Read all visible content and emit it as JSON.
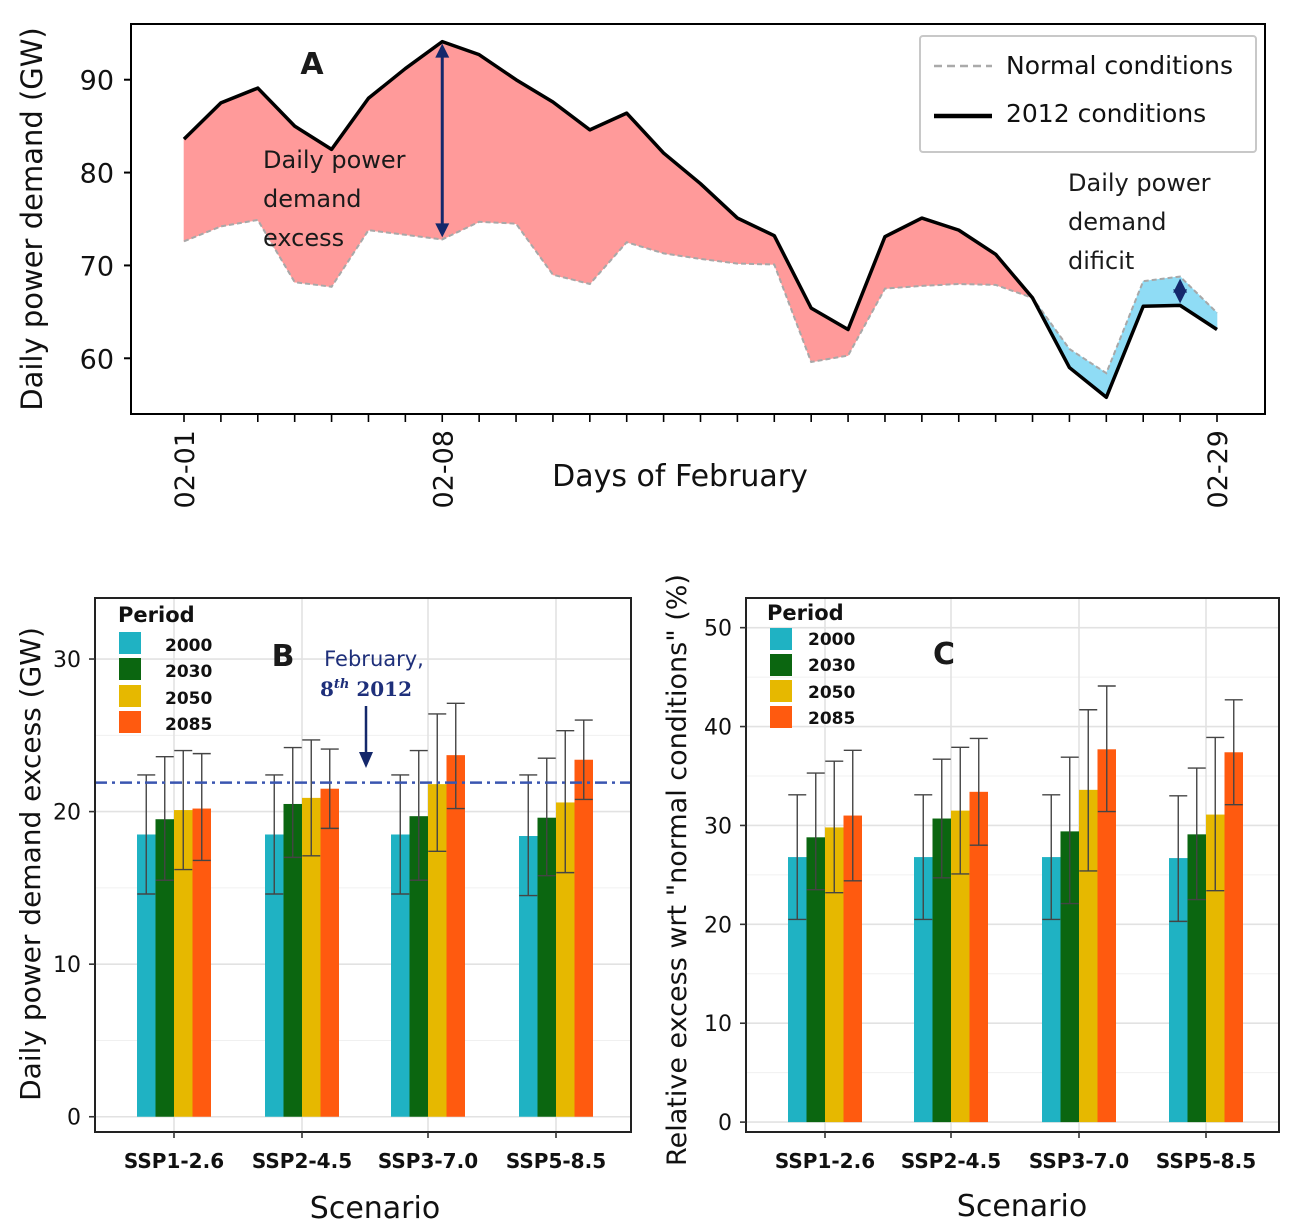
{
  "colors": {
    "excess_fill": "#ff9a9a",
    "deficit_fill": "#8fdcf5",
    "arrow": "#14286b",
    "ref_line": "#3a56b0",
    "period_2000": "#1fb2c3",
    "period_2030": "#0b6610",
    "period_2050": "#e6b800",
    "period_2085": "#ff5a0f"
  },
  "panel_a": {
    "label": "A",
    "legend": {
      "normal": "Normal conditions",
      "y2012": "2012 conditions"
    },
    "annotation_excess": [
      "Daily power",
      "demand",
      "excess"
    ],
    "annotation_deficit": [
      "Daily power",
      "demand",
      "dificit"
    ]
  },
  "panel_b": {
    "label": "B",
    "legend_title": "Period",
    "ref_annotation": "February,",
    "ref_annotation_2_base": "8",
    "ref_annotation_2_sup": "th",
    "ref_annotation_2_year": " 2012"
  },
  "panel_c": {
    "label": "C",
    "legend_title": "Period"
  },
  "chart_data": [
    {
      "type": "area",
      "xlabel": "Days of February",
      "ylabel": "Daily power demand (GW)",
      "x": [
        "02-01",
        "02-02",
        "02-03",
        "02-04",
        "02-05",
        "02-06",
        "02-07",
        "02-08",
        "02-09",
        "02-10",
        "02-11",
        "02-12",
        "02-13",
        "02-14",
        "02-15",
        "02-16",
        "02-17",
        "02-18",
        "02-19",
        "02-20",
        "02-21",
        "02-22",
        "02-23",
        "02-24",
        "02-25",
        "02-26",
        "02-27",
        "02-28",
        "02-29"
      ],
      "xticks": [
        "02-01",
        "02-08",
        "02-29"
      ],
      "ylim": [
        54,
        96
      ],
      "yticks": [
        60,
        70,
        80,
        90
      ],
      "series": [
        {
          "name": "2012 conditions",
          "values": [
            83.6,
            87.5,
            89.1,
            85.0,
            82.5,
            88.0,
            91.2,
            94.1,
            92.7,
            90.0,
            87.6,
            84.6,
            86.4,
            82.1,
            78.8,
            75.1,
            73.2,
            65.4,
            63.1,
            73.1,
            75.1,
            73.8,
            71.2,
            66.5,
            59.0,
            55.8,
            65.6,
            65.7,
            63.1
          ]
        },
        {
          "name": "Normal conditions",
          "values": [
            72.6,
            74.2,
            74.9,
            68.2,
            67.7,
            73.8,
            73.3,
            72.8,
            74.7,
            74.5,
            69.0,
            68.0,
            72.5,
            71.3,
            70.7,
            70.2,
            70.1,
            59.6,
            60.3,
            67.5,
            67.8,
            68.0,
            67.9,
            66.5,
            61.0,
            58.4,
            68.3,
            68.8,
            64.9
          ]
        }
      ]
    },
    {
      "type": "bar",
      "xlabel": "Scenario",
      "ylabel": "Daily power demand excess (GW)",
      "categories": [
        "SSP1-2.6",
        "SSP2-4.5",
        "SSP3-7.0",
        "SSP5-8.5"
      ],
      "ylim": [
        -1,
        34
      ],
      "yticks": [
        0,
        10,
        20,
        30
      ],
      "reference_line": 21.9,
      "series": [
        {
          "name": "2000",
          "values": [
            18.5,
            18.5,
            18.5,
            18.4
          ],
          "err_low": [
            14.6,
            14.6,
            14.6,
            14.5
          ],
          "err_high": [
            22.4,
            22.4,
            22.4,
            22.4
          ]
        },
        {
          "name": "2030",
          "values": [
            19.5,
            20.5,
            19.7,
            19.6
          ],
          "err_low": [
            15.5,
            17.0,
            15.5,
            15.8
          ],
          "err_high": [
            23.6,
            24.2,
            24.0,
            23.5
          ]
        },
        {
          "name": "2050",
          "values": [
            20.1,
            20.9,
            21.8,
            20.6
          ],
          "err_low": [
            16.2,
            17.1,
            17.4,
            16.0
          ],
          "err_high": [
            24.0,
            24.7,
            26.4,
            25.3
          ]
        },
        {
          "name": "2085",
          "values": [
            20.2,
            21.5,
            23.7,
            23.4
          ],
          "err_low": [
            16.8,
            18.9,
            20.2,
            20.8
          ],
          "err_high": [
            23.8,
            24.1,
            27.1,
            26.0
          ]
        }
      ]
    },
    {
      "type": "bar",
      "xlabel": "Scenario",
      "ylabel": "Relative excess wrt \"normal conditions\" (%)",
      "categories": [
        "SSP1-2.6",
        "SSP2-4.5",
        "SSP3-7.0",
        "SSP5-8.5"
      ],
      "ylim": [
        -1,
        53
      ],
      "yticks": [
        0,
        10,
        20,
        30,
        40,
        50
      ],
      "series": [
        {
          "name": "2000",
          "values": [
            26.8,
            26.8,
            26.8,
            26.7
          ],
          "err_low": [
            20.5,
            20.5,
            20.5,
            20.3
          ],
          "err_high": [
            33.1,
            33.1,
            33.1,
            33.0
          ]
        },
        {
          "name": "2030",
          "values": [
            28.8,
            30.7,
            29.4,
            29.1
          ],
          "err_low": [
            23.5,
            24.7,
            22.1,
            22.5
          ],
          "err_high": [
            35.3,
            36.7,
            36.9,
            35.8
          ]
        },
        {
          "name": "2050",
          "values": [
            29.8,
            31.5,
            33.6,
            31.1
          ],
          "err_low": [
            23.2,
            25.1,
            25.4,
            23.4
          ],
          "err_high": [
            36.5,
            37.9,
            41.7,
            38.9
          ]
        },
        {
          "name": "2085",
          "values": [
            31.0,
            33.4,
            37.7,
            37.4
          ],
          "err_low": [
            24.4,
            28.0,
            31.4,
            32.1
          ],
          "err_high": [
            37.6,
            38.8,
            44.1,
            42.7
          ]
        }
      ]
    }
  ]
}
